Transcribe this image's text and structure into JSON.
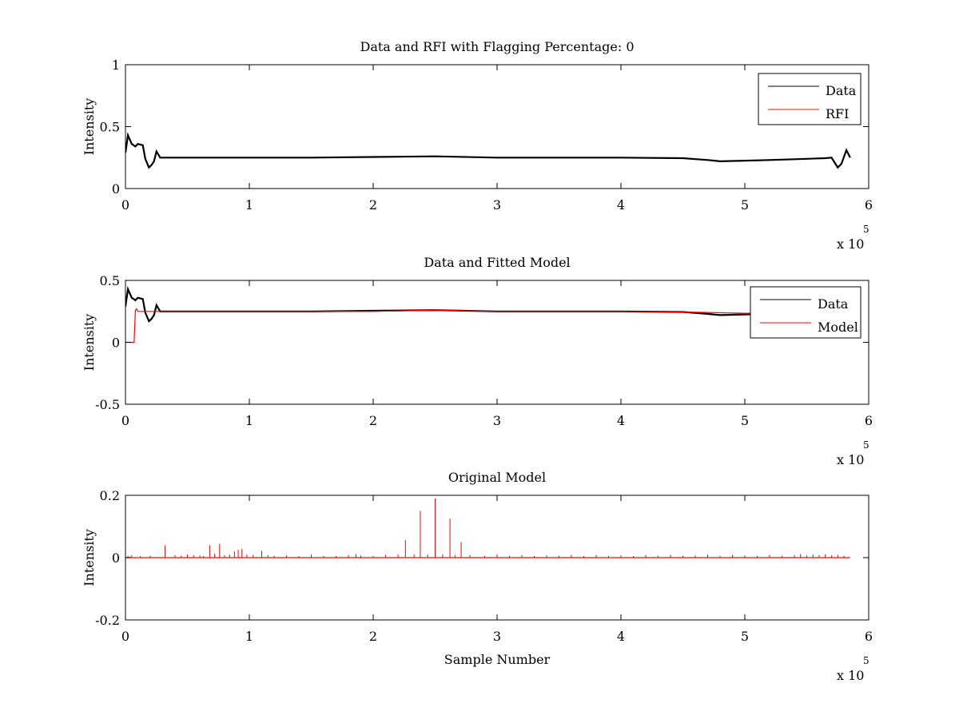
{
  "chart_data": [
    {
      "type": "line",
      "title": "Data and RFI with Flagging Percentage: 0",
      "xlabel": "",
      "ylabel": "Intensity",
      "xlim": [
        0,
        600000
      ],
      "ylim": [
        0,
        1
      ],
      "xticks": [
        0,
        1,
        2,
        3,
        4,
        5,
        6
      ],
      "yticks": [
        "0",
        "0.5",
        "1"
      ],
      "x_multiplier": {
        "base": "x 10",
        "exponent": "5"
      },
      "grid": false,
      "legend_position": "top-right",
      "series": [
        {
          "name": "Data",
          "color": "#000000",
          "x": [
            0,
            2000,
            5000,
            8000,
            10000,
            14000,
            16000,
            19000,
            21000,
            23000,
            25000,
            28000,
            50000,
            100000,
            150000,
            200000,
            250000,
            300000,
            350000,
            400000,
            450000,
            470000,
            480000,
            500000,
            520000,
            550000,
            565000,
            570000,
            575000,
            578000,
            580000,
            582000,
            585000
          ],
          "values": [
            0.29,
            0.43,
            0.36,
            0.34,
            0.36,
            0.35,
            0.24,
            0.17,
            0.19,
            0.22,
            0.3,
            0.25,
            0.25,
            0.25,
            0.25,
            0.255,
            0.26,
            0.25,
            0.25,
            0.25,
            0.245,
            0.23,
            0.22,
            0.225,
            0.23,
            0.24,
            0.245,
            0.25,
            0.17,
            0.2,
            0.255,
            0.31,
            0.25
          ]
        },
        {
          "name": "RFI",
          "color": "#ff0000",
          "x": [],
          "values": []
        }
      ]
    },
    {
      "type": "line",
      "title": "Data and Fitted Model",
      "xlabel": "",
      "ylabel": "Intensity",
      "xlim": [
        0,
        600000
      ],
      "ylim": [
        -0.5,
        0.5
      ],
      "xticks": [
        0,
        1,
        2,
        3,
        4,
        5,
        6
      ],
      "yticks": [
        "-0.5",
        "0",
        "0.5"
      ],
      "x_multiplier": {
        "base": "x 10",
        "exponent": "5"
      },
      "grid": false,
      "legend_position": "top-right",
      "series": [
        {
          "name": "Data",
          "color": "#000000",
          "x": [
            0,
            2000,
            5000,
            8000,
            10000,
            14000,
            16000,
            19000,
            21000,
            23000,
            25000,
            28000,
            50000,
            100000,
            150000,
            200000,
            250000,
            300000,
            350000,
            400000,
            450000,
            470000,
            480000,
            500000,
            520000,
            550000,
            565000,
            570000,
            575000,
            578000,
            580000,
            582000,
            585000
          ],
          "values": [
            0.29,
            0.43,
            0.36,
            0.34,
            0.36,
            0.35,
            0.24,
            0.17,
            0.19,
            0.22,
            0.3,
            0.25,
            0.25,
            0.25,
            0.25,
            0.255,
            0.26,
            0.25,
            0.25,
            0.25,
            0.245,
            0.23,
            0.22,
            0.225,
            0.23,
            0.24,
            0.245,
            0.25,
            0.17,
            0.2,
            0.255,
            0.31,
            0.25
          ]
        },
        {
          "name": "Model",
          "color": "#ff0000",
          "x": [
            0,
            7000,
            8000,
            9000,
            10000,
            50000,
            100000,
            200000,
            250000,
            300000,
            400000,
            450000,
            500000,
            520000,
            550000,
            585000
          ],
          "values": [
            0.0,
            0.0,
            0.26,
            0.27,
            0.25,
            0.25,
            0.25,
            0.25,
            0.26,
            0.25,
            0.25,
            0.245,
            0.235,
            0.235,
            0.24,
            0.245
          ]
        }
      ]
    },
    {
      "type": "line",
      "title": "Original Model",
      "xlabel": "Sample Number",
      "ylabel": "Intensity",
      "xlim": [
        0,
        600000
      ],
      "ylim": [
        -0.2,
        0.2
      ],
      "xticks": [
        0,
        1,
        2,
        3,
        4,
        5,
        6
      ],
      "yticks": [
        "-0.2",
        "0",
        "0.2"
      ],
      "x_multiplier": {
        "base": "x 10",
        "exponent": "5"
      },
      "grid": false,
      "series": [
        {
          "name": "",
          "color": "#ff0000",
          "baseline": 0,
          "x_end": 585000,
          "spikes": [
            [
              2000,
              0.006
            ],
            [
              5000,
              0.008
            ],
            [
              12000,
              0.005
            ],
            [
              20000,
              0.006
            ],
            [
              32000,
              0.04
            ],
            [
              40000,
              0.008
            ],
            [
              45000,
              0.006
            ],
            [
              50000,
              0.01
            ],
            [
              55000,
              0.008
            ],
            [
              60000,
              0.007
            ],
            [
              63000,
              0.005
            ],
            [
              68000,
              0.04
            ],
            [
              72000,
              0.012
            ],
            [
              76000,
              0.044
            ],
            [
              80000,
              0.008
            ],
            [
              84000,
              0.01
            ],
            [
              88000,
              0.02
            ],
            [
              91000,
              0.025
            ],
            [
              94000,
              0.028
            ],
            [
              98000,
              0.01
            ],
            [
              103000,
              0.008
            ],
            [
              110000,
              0.022
            ],
            [
              115000,
              0.008
            ],
            [
              120000,
              0.006
            ],
            [
              130000,
              0.007
            ],
            [
              140000,
              0.005
            ],
            [
              150000,
              0.01
            ],
            [
              160000,
              0.006
            ],
            [
              170000,
              0.005
            ],
            [
              180000,
              0.008
            ],
            [
              186000,
              0.012
            ],
            [
              190000,
              0.007
            ],
            [
              200000,
              0.006
            ],
            [
              210000,
              0.008
            ],
            [
              220000,
              0.01
            ],
            [
              226000,
              0.057
            ],
            [
              233000,
              0.01
            ],
            [
              238000,
              0.15
            ],
            [
              244000,
              0.01
            ],
            [
              250000,
              0.19
            ],
            [
              256000,
              0.01
            ],
            [
              262000,
              0.125
            ],
            [
              266000,
              0.008
            ],
            [
              271000,
              0.05
            ],
            [
              278000,
              0.008
            ],
            [
              290000,
              0.006
            ],
            [
              300000,
              0.01
            ],
            [
              310000,
              0.006
            ],
            [
              320000,
              0.008
            ],
            [
              330000,
              0.005
            ],
            [
              340000,
              0.007
            ],
            [
              350000,
              0.006
            ],
            [
              360000,
              0.009
            ],
            [
              370000,
              0.005
            ],
            [
              380000,
              0.008
            ],
            [
              390000,
              0.006
            ],
            [
              400000,
              0.007
            ],
            [
              410000,
              0.005
            ],
            [
              420000,
              0.008
            ],
            [
              430000,
              0.006
            ],
            [
              440000,
              0.009
            ],
            [
              450000,
              0.006
            ],
            [
              460000,
              0.007
            ],
            [
              470000,
              0.01
            ],
            [
              480000,
              0.006
            ],
            [
              490000,
              0.008
            ],
            [
              500000,
              0.007
            ],
            [
              510000,
              0.006
            ],
            [
              520000,
              0.009
            ],
            [
              530000,
              0.006
            ],
            [
              540000,
              0.008
            ],
            [
              545000,
              0.012
            ],
            [
              550000,
              0.007
            ],
            [
              555000,
              0.01
            ],
            [
              560000,
              0.008
            ],
            [
              565000,
              0.011
            ],
            [
              570000,
              0.007
            ],
            [
              575000,
              0.009
            ],
            [
              580000,
              0.006
            ]
          ]
        }
      ]
    }
  ]
}
